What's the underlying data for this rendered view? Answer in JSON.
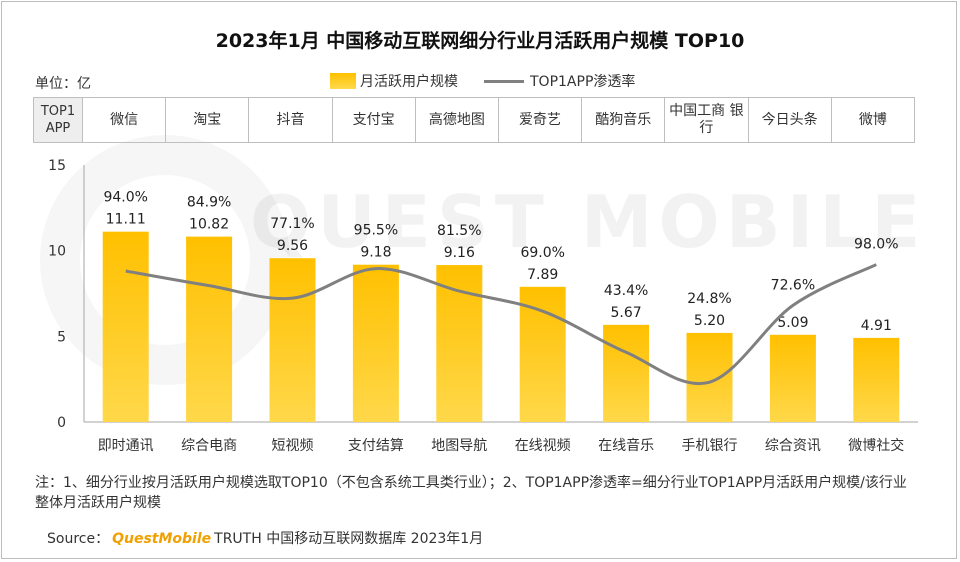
{
  "title": "2023年1月 中国移动互联网细分行业月活跃用户规模 TOP10",
  "unit_label": "单位：亿",
  "legend": {
    "bar": "月活跃用户规模",
    "line": "TOP1APP渗透率"
  },
  "top_header": "TOP1 APP",
  "top_apps": [
    "微信",
    "淘宝",
    "抖音",
    "支付宝",
    "高德地图",
    "爱奇艺",
    "酷狗音乐",
    "中国工商 银行",
    "今日头条",
    "微博"
  ],
  "watermark": "QUEST MOBILE",
  "chart_data": {
    "type": "bar",
    "title": "2023年1月 中国移动互联网细分行业月活跃用户规模 TOP10",
    "categories": [
      "即时通讯",
      "综合电商",
      "短视频",
      "支付结算",
      "地图导航",
      "在线视频",
      "在线音乐",
      "手机银行",
      "综合资讯",
      "微博社交"
    ],
    "series": [
      {
        "name": "月活跃用户规模",
        "type": "bar",
        "values": [
          11.11,
          10.82,
          9.56,
          9.18,
          9.16,
          7.89,
          5.67,
          5.2,
          5.09,
          4.91
        ],
        "labels": [
          "11.11",
          "10.82",
          "9.56",
          "9.18",
          "9.16",
          "7.89",
          "5.67",
          "5.20",
          "5.09",
          "4.91"
        ]
      },
      {
        "name": "TOP1APP渗透率",
        "type": "line",
        "values": [
          94.0,
          84.9,
          77.1,
          95.5,
          81.5,
          69.0,
          43.4,
          24.8,
          72.6,
          98.0
        ],
        "labels": [
          "94.0%",
          "84.9%",
          "77.1%",
          "95.5%",
          "81.5%",
          "69.0%",
          "43.4%",
          "24.8%",
          "72.6%",
          "98.0%"
        ]
      }
    ],
    "ylabel": "亿",
    "ylim": [
      0,
      15
    ],
    "yticks": [
      0,
      5,
      10,
      15
    ],
    "ytick_labels": [
      "0",
      "5",
      "10",
      "15"
    ],
    "line_range_pct": [
      0,
      160
    ],
    "grid": false,
    "colors": {
      "bar_top": "#ffc000",
      "bar_bottom": "#ffd84a",
      "line": "#808080",
      "axis": "#a6a6a6"
    }
  },
  "note": "注：1、细分行业按月活跃用户规模选取TOP10（不包含系统工具类行业）；2、TOP1APP渗透率=细分行业TOP1APP月活跃用户规模/该行业整体月活跃用户规模",
  "source": {
    "prefix": "Source：",
    "brand": "QuestMobile",
    "suffix": "TRUTH 中国移动互联网数据库 2023年1月"
  }
}
